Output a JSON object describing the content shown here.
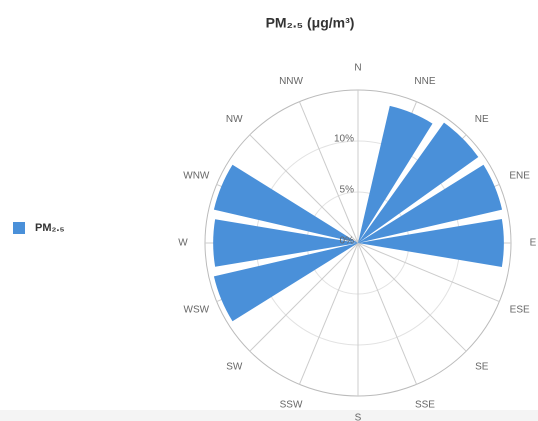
{
  "chart_data": {
    "type": "polar_bar",
    "title": "PM₂.₅ (μg/m³)",
    "categories": [
      "N",
      "NNE",
      "NE",
      "ENE",
      "E",
      "ESE",
      "SE",
      "SSE",
      "S",
      "SSW",
      "SW",
      "WSW",
      "W",
      "WNW",
      "NW",
      "NNW"
    ],
    "series": [
      {
        "name": "PM₂.₅",
        "color": "#4a90d9",
        "values": [
          0,
          13.8,
          14.5,
          14.5,
          14.3,
          0,
          0,
          0,
          0,
          0,
          0,
          14.5,
          14.2,
          14.5,
          0,
          0
        ]
      }
    ],
    "ylim": [
      0,
      15
    ],
    "yticks": [
      {
        "value": 0,
        "label": "0%"
      },
      {
        "value": 5,
        "label": "5%"
      },
      {
        "value": 10,
        "label": "10%"
      }
    ],
    "grid": true,
    "legend": "left"
  }
}
